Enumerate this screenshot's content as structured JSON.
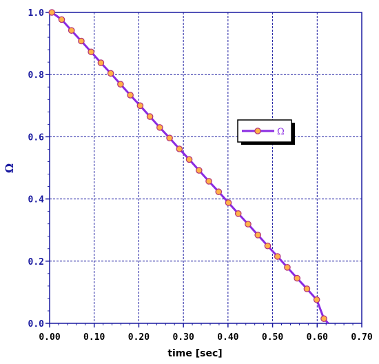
{
  "chart_data": {
    "type": "line",
    "xlabel": "time [sec]",
    "ylabel": "Ω",
    "xlim": [
      0,
      0.7
    ],
    "ylim": [
      0,
      1.0
    ],
    "x_ticks": [
      0.0,
      0.1,
      0.2,
      0.3,
      0.4,
      0.5,
      0.6,
      0.7
    ],
    "x_tick_labels": [
      "0.00",
      "0.10",
      "0.20",
      "0.30",
      "0.40",
      "0.50",
      "0.60",
      "0.70"
    ],
    "y_ticks": [
      0.0,
      0.2,
      0.4,
      0.6,
      0.8,
      1.0
    ],
    "y_tick_labels": [
      "0.0",
      "0.2",
      "0.4",
      "0.6",
      "0.8",
      "1.0"
    ],
    "grid": true,
    "legend_placement": "center-right",
    "series": [
      {
        "name": "Ω",
        "line_color": "#8a2be2",
        "marker_fill": "#ffb347",
        "marker_edge": "#b0307a",
        "x": [
          0.005,
          0.027,
          0.049,
          0.071,
          0.093,
          0.115,
          0.137,
          0.159,
          0.181,
          0.203,
          0.225,
          0.247,
          0.269,
          0.291,
          0.313,
          0.335,
          0.357,
          0.379,
          0.401,
          0.423,
          0.445,
          0.467,
          0.489,
          0.511,
          0.533,
          0.555,
          0.577,
          0.599,
          0.615
        ],
        "y": [
          1.0,
          0.977,
          0.942,
          0.908,
          0.873,
          0.838,
          0.804,
          0.769,
          0.734,
          0.7,
          0.665,
          0.63,
          0.596,
          0.561,
          0.527,
          0.492,
          0.457,
          0.423,
          0.388,
          0.353,
          0.319,
          0.284,
          0.249,
          0.215,
          0.18,
          0.145,
          0.111,
          0.076,
          0.015
        ]
      }
    ]
  }
}
